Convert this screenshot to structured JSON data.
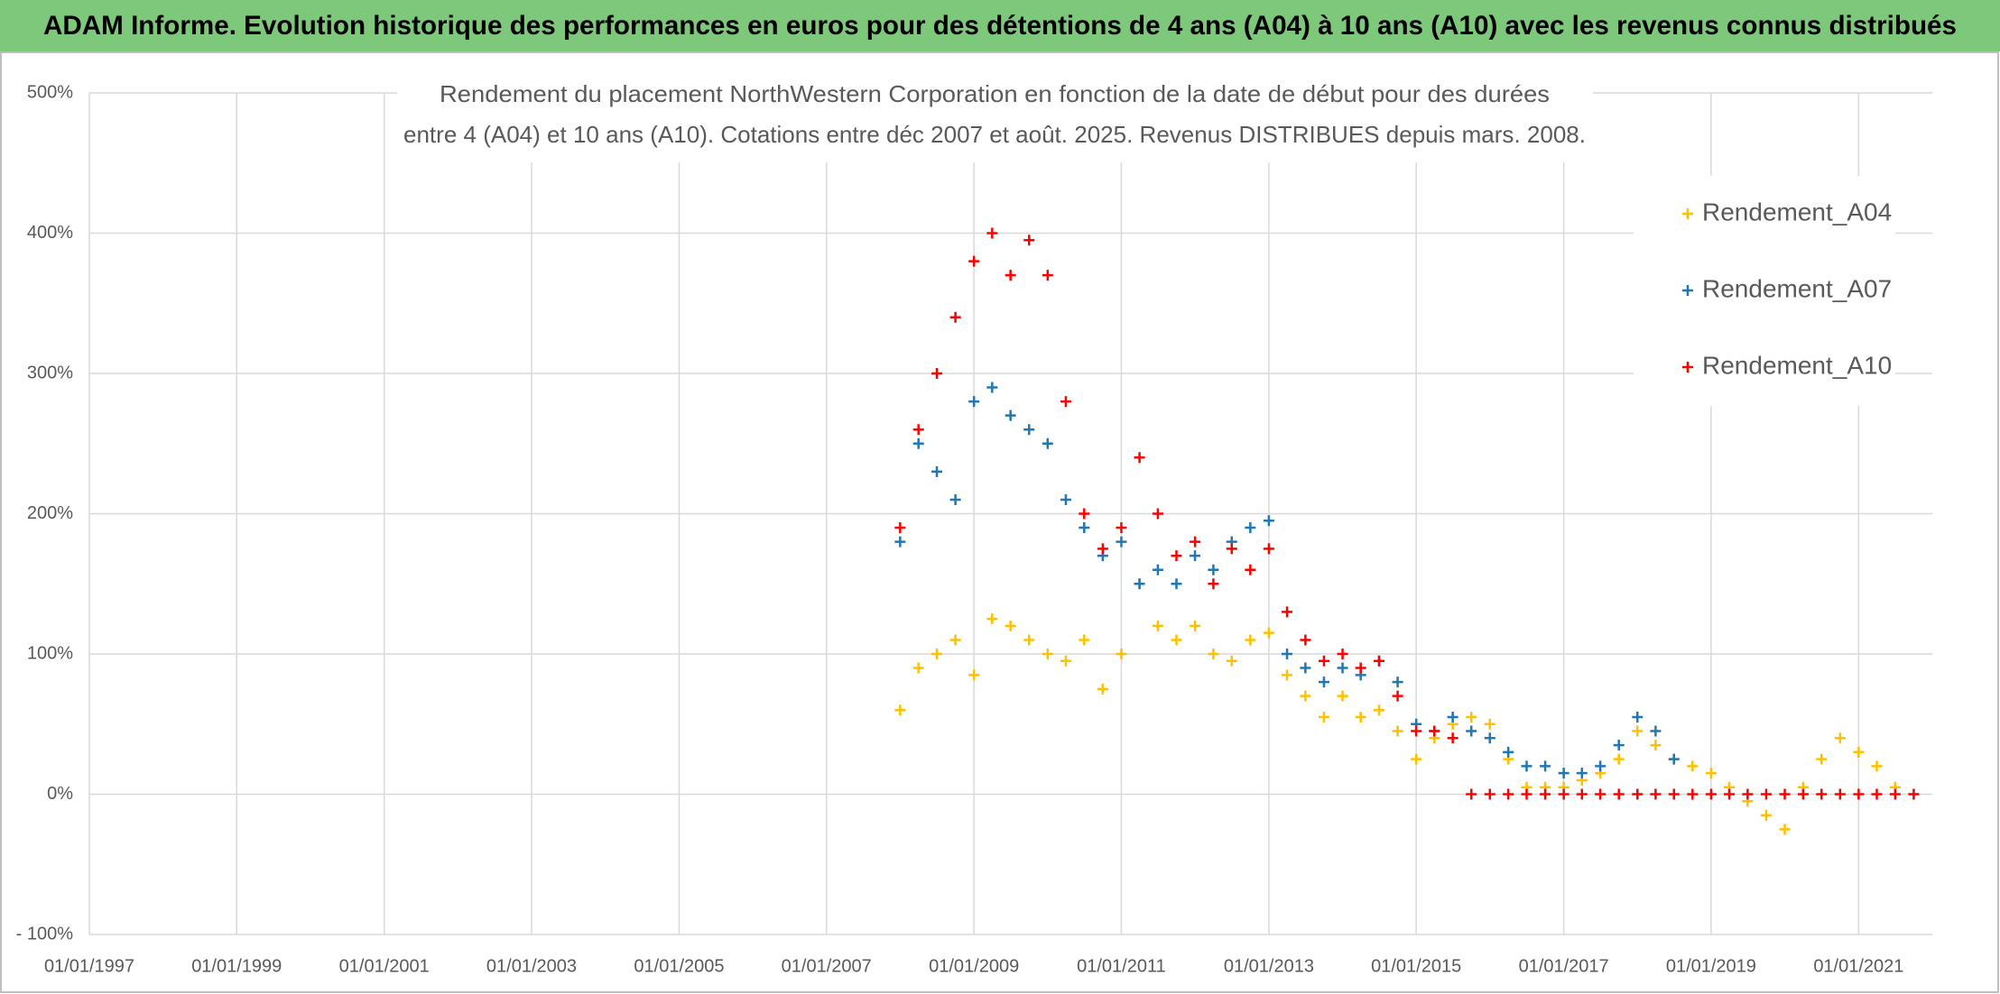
{
  "chart_data": {
    "type": "scatter",
    "title": "ADAM Informe. Evolution historique des performances en euros pour des détentions de 4 ans (A04) à 10 ans (A10) avec les revenus connus distribués",
    "subtitle": [
      "Rendement du placement NorthWestern Corporation en fonction de la date de début pour des durées",
      "entre 4 (A04) et 10 ans (A10). Cotations entre déc 2007 et août. 2025. Revenus DISTRIBUES depuis mars. 2008."
    ],
    "x": [
      "2008-01-01",
      "2008-04-01",
      "2008-07-01",
      "2008-10-01",
      "2009-01-01",
      "2009-04-01",
      "2009-07-01",
      "2009-10-01",
      "2010-01-01",
      "2010-04-01",
      "2010-07-01",
      "2010-10-01",
      "2011-01-01",
      "2011-04-01",
      "2011-07-01",
      "2011-10-01",
      "2012-01-01",
      "2012-04-01",
      "2012-07-01",
      "2012-10-01",
      "2013-01-01",
      "2013-04-01",
      "2013-07-01",
      "2013-10-01",
      "2014-01-01",
      "2014-04-01",
      "2014-07-01",
      "2014-10-01",
      "2015-01-01",
      "2015-04-01",
      "2015-07-01",
      "2015-10-01",
      "2016-01-01",
      "2016-04-01",
      "2016-07-01",
      "2016-10-01",
      "2017-01-01",
      "2017-04-01",
      "2017-07-01",
      "2017-10-01",
      "2018-01-01",
      "2018-04-01",
      "2018-07-01",
      "2018-10-01",
      "2019-01-01",
      "2019-04-01",
      "2019-07-01",
      "2019-10-01",
      "2020-01-01",
      "2020-04-01",
      "2020-07-01",
      "2020-10-01",
      "2021-01-01",
      "2021-04-01",
      "2021-07-01",
      "2021-10-01"
    ],
    "series": [
      {
        "name": "Rendement_A04",
        "color": "#ffc000",
        "values": [
          60,
          90,
          100,
          110,
          85,
          125,
          120,
          110,
          100,
          95,
          110,
          75,
          100,
          150,
          120,
          110,
          120,
          100,
          95,
          110,
          115,
          85,
          70,
          55,
          70,
          55,
          60,
          45,
          25,
          40,
          50,
          55,
          50,
          25,
          5,
          5,
          5,
          10,
          15,
          25,
          45,
          35,
          25,
          20,
          15,
          5,
          -5,
          -15,
          -25,
          5,
          25,
          40,
          30,
          20,
          5,
          0
        ]
      },
      {
        "name": "Rendement_A07",
        "color": "#1f77b4",
        "values": [
          180,
          250,
          230,
          210,
          280,
          290,
          270,
          260,
          250,
          210,
          190,
          170,
          180,
          150,
          160,
          150,
          170,
          160,
          180,
          190,
          195,
          100,
          90,
          80,
          90,
          85,
          95,
          80,
          50,
          45,
          55,
          45,
          40,
          30,
          20,
          20,
          15,
          15,
          20,
          35,
          55,
          45,
          25,
          null,
          null,
          null,
          null,
          null,
          null,
          null,
          null,
          null,
          null,
          null,
          null,
          null
        ]
      },
      {
        "name": "Rendement_A10",
        "color": "#ff0000",
        "values": [
          190,
          260,
          300,
          340,
          380,
          400,
          370,
          395,
          370,
          280,
          200,
          175,
          190,
          240,
          200,
          170,
          180,
          150,
          175,
          160,
          175,
          130,
          110,
          95,
          100,
          90,
          95,
          70,
          45,
          45,
          40,
          0,
          0,
          0,
          0,
          0,
          0,
          0,
          0,
          0,
          0,
          0,
          0,
          0,
          0,
          0,
          0,
          0,
          0,
          0,
          0,
          0,
          0,
          0,
          0,
          0
        ]
      }
    ],
    "xlim": [
      "1997-01-01",
      "2022-01-01"
    ],
    "ylim": [
      -100,
      500
    ],
    "xticks": [
      {
        "value": "1997-01-01",
        "label": "01/01/1997"
      },
      {
        "value": "1999-01-01",
        "label": "01/01/1999"
      },
      {
        "value": "2001-01-01",
        "label": "01/01/2001"
      },
      {
        "value": "2003-01-01",
        "label": "01/01/2003"
      },
      {
        "value": "2005-01-01",
        "label": "01/01/2005"
      },
      {
        "value": "2007-01-01",
        "label": "01/01/2007"
      },
      {
        "value": "2009-01-01",
        "label": "01/01/2009"
      },
      {
        "value": "2011-01-01",
        "label": "01/01/2011"
      },
      {
        "value": "2013-01-01",
        "label": "01/01/2013"
      },
      {
        "value": "2015-01-01",
        "label": "01/01/2015"
      },
      {
        "value": "2017-01-01",
        "label": "01/01/2017"
      },
      {
        "value": "2019-01-01",
        "label": "01/01/2019"
      },
      {
        "value": "2021-01-01",
        "label": "01/01/2021"
      }
    ],
    "yticks": [
      {
        "value": -100,
        "label": "- 100%"
      },
      {
        "value": 0,
        "label": "0%"
      },
      {
        "value": 100,
        "label": "100%"
      },
      {
        "value": 200,
        "label": "200%"
      },
      {
        "value": 300,
        "label": "300%"
      },
      {
        "value": 400,
        "label": "400%"
      },
      {
        "value": 500,
        "label": "500%"
      }
    ],
    "grid": true
  }
}
